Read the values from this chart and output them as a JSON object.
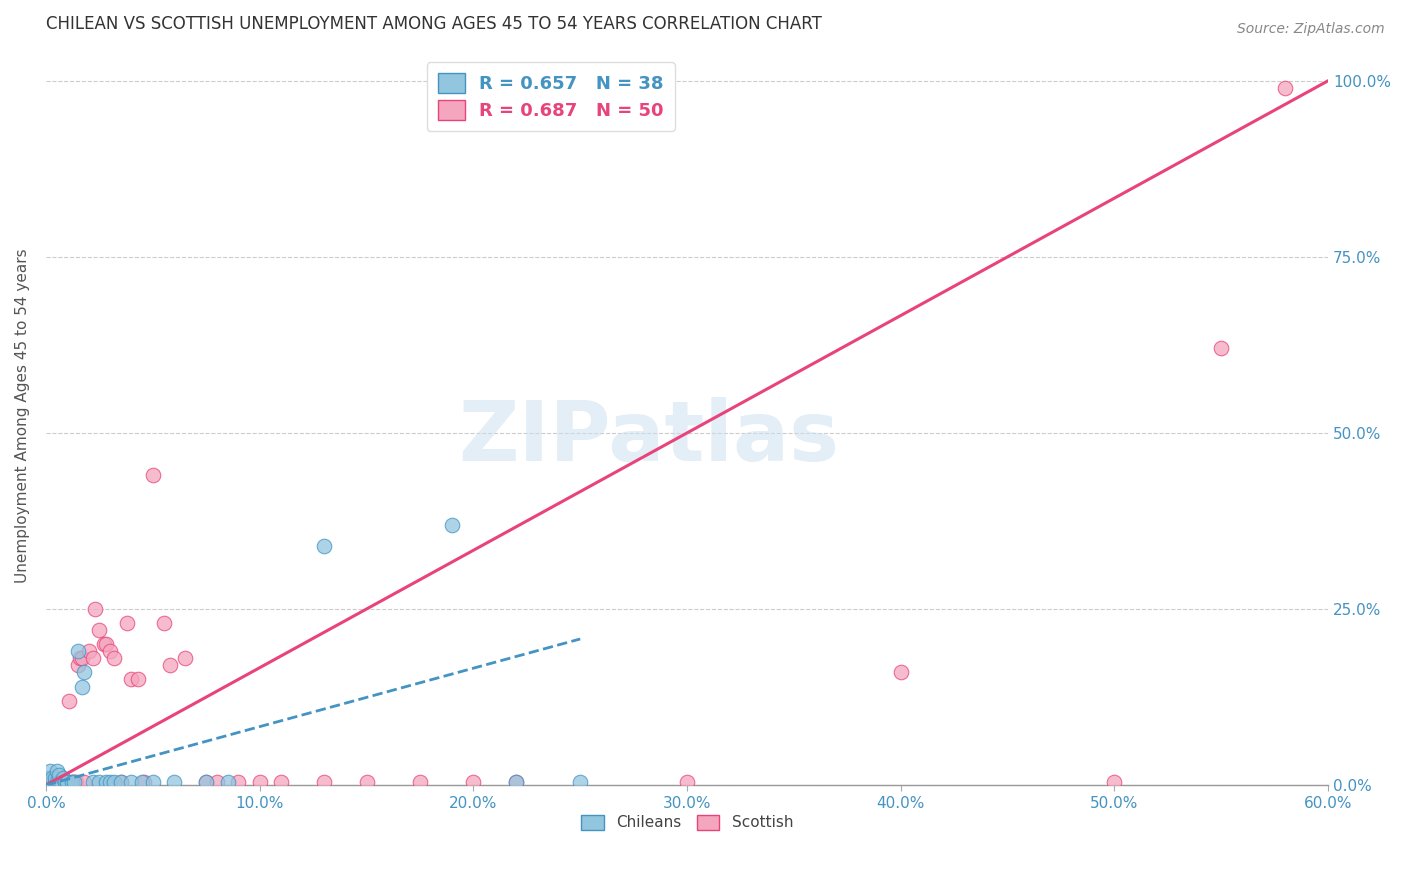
{
  "title": "CHILEAN VS SCOTTISH UNEMPLOYMENT AMONG AGES 45 TO 54 YEARS CORRELATION CHART",
  "source": "Source: ZipAtlas.com",
  "xlabel_vals": [
    0.0,
    0.1,
    0.2,
    0.3,
    0.4,
    0.5,
    0.6
  ],
  "ylabel_vals": [
    0.0,
    0.25,
    0.5,
    0.75,
    1.0
  ],
  "xlim": [
    0.0,
    0.6
  ],
  "ylim": [
    0.0,
    1.05
  ],
  "watermark": "ZIPatlas",
  "ylabel": "Unemployment Among Ages 45 to 54 years",
  "blue_color": "#92c5de",
  "blue_edge_color": "#4393c3",
  "pink_color": "#f4a6be",
  "pink_edge_color": "#e8437a",
  "blue_line_color": "#4393c3",
  "pink_line_color": "#e8437a",
  "blue_line_slope": 0.83,
  "blue_line_intercept": 0.0,
  "blue_line_xmin": 0.0,
  "blue_line_xmax": 0.25,
  "pink_line_slope": 1.667,
  "pink_line_intercept": 0.0,
  "pink_line_xmin": 0.0,
  "pink_line_xmax": 0.6,
  "chilean_points": [
    [
      0.001,
      0.005
    ],
    [
      0.001,
      0.01
    ],
    [
      0.002,
      0.005
    ],
    [
      0.002,
      0.02
    ],
    [
      0.003,
      0.005
    ],
    [
      0.003,
      0.01
    ],
    [
      0.004,
      0.005
    ],
    [
      0.004,
      0.01
    ],
    [
      0.005,
      0.005
    ],
    [
      0.005,
      0.02
    ],
    [
      0.006,
      0.005
    ],
    [
      0.006,
      0.015
    ],
    [
      0.007,
      0.005
    ],
    [
      0.008,
      0.01
    ],
    [
      0.009,
      0.005
    ],
    [
      0.01,
      0.005
    ],
    [
      0.01,
      0.005
    ],
    [
      0.012,
      0.005
    ],
    [
      0.013,
      0.005
    ],
    [
      0.015,
      0.19
    ],
    [
      0.017,
      0.14
    ],
    [
      0.018,
      0.16
    ],
    [
      0.022,
      0.005
    ],
    [
      0.025,
      0.005
    ],
    [
      0.028,
      0.005
    ],
    [
      0.03,
      0.005
    ],
    [
      0.032,
      0.005
    ],
    [
      0.035,
      0.005
    ],
    [
      0.04,
      0.005
    ],
    [
      0.045,
      0.005
    ],
    [
      0.05,
      0.005
    ],
    [
      0.06,
      0.005
    ],
    [
      0.075,
      0.005
    ],
    [
      0.085,
      0.005
    ],
    [
      0.13,
      0.34
    ],
    [
      0.19,
      0.37
    ],
    [
      0.22,
      0.005
    ],
    [
      0.25,
      0.005
    ]
  ],
  "scottish_points": [
    [
      0.001,
      0.005
    ],
    [
      0.002,
      0.005
    ],
    [
      0.003,
      0.005
    ],
    [
      0.004,
      0.005
    ],
    [
      0.005,
      0.005
    ],
    [
      0.006,
      0.005
    ],
    [
      0.007,
      0.005
    ],
    [
      0.008,
      0.005
    ],
    [
      0.009,
      0.005
    ],
    [
      0.01,
      0.005
    ],
    [
      0.011,
      0.12
    ],
    [
      0.012,
      0.005
    ],
    [
      0.013,
      0.005
    ],
    [
      0.014,
      0.005
    ],
    [
      0.015,
      0.17
    ],
    [
      0.016,
      0.18
    ],
    [
      0.017,
      0.18
    ],
    [
      0.018,
      0.005
    ],
    [
      0.02,
      0.19
    ],
    [
      0.022,
      0.18
    ],
    [
      0.023,
      0.25
    ],
    [
      0.025,
      0.22
    ],
    [
      0.027,
      0.2
    ],
    [
      0.028,
      0.2
    ],
    [
      0.03,
      0.19
    ],
    [
      0.032,
      0.18
    ],
    [
      0.035,
      0.005
    ],
    [
      0.038,
      0.23
    ],
    [
      0.04,
      0.15
    ],
    [
      0.043,
      0.15
    ],
    [
      0.046,
      0.005
    ],
    [
      0.05,
      0.44
    ],
    [
      0.055,
      0.23
    ],
    [
      0.058,
      0.17
    ],
    [
      0.065,
      0.18
    ],
    [
      0.075,
      0.005
    ],
    [
      0.08,
      0.005
    ],
    [
      0.09,
      0.005
    ],
    [
      0.1,
      0.005
    ],
    [
      0.11,
      0.005
    ],
    [
      0.13,
      0.005
    ],
    [
      0.15,
      0.005
    ],
    [
      0.175,
      0.005
    ],
    [
      0.2,
      0.005
    ],
    [
      0.22,
      0.005
    ],
    [
      0.3,
      0.005
    ],
    [
      0.4,
      0.16
    ],
    [
      0.5,
      0.005
    ],
    [
      0.55,
      0.62
    ],
    [
      0.58,
      0.99
    ]
  ]
}
